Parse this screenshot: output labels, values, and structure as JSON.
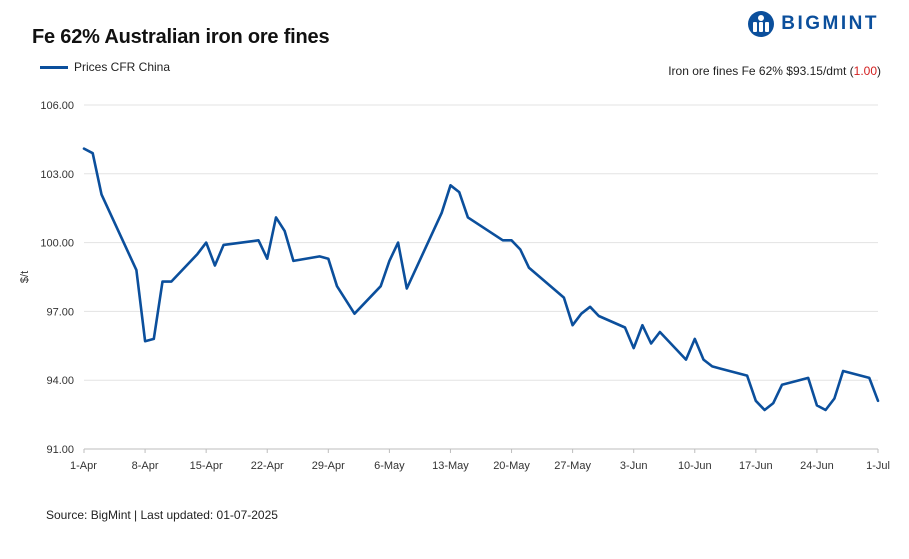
{
  "header": {
    "title": "Fe 62% Australian iron ore fines",
    "legend_label": "Prices CFR China",
    "ticker_main": "Iron ore fines Fe 62% $93.15/dmt (",
    "ticker_change": "1.00",
    "ticker_close": ")",
    "logo_text": "BIGMINT"
  },
  "footer": {
    "source": "Source: BigMint | Last updated: 01-07-2025"
  },
  "colors": {
    "series": "#0b4f9c",
    "negative": "#d32020",
    "grid": "#e3e3e3"
  },
  "chart_data": {
    "type": "line",
    "title": "Fe 62% Australian iron ore fines",
    "ylabel": "$/t",
    "xlabel": "",
    "ylim": [
      91,
      106
    ],
    "yticks": [
      "91.00",
      "94.00",
      "97.00",
      "100.00",
      "103.00",
      "106.00"
    ],
    "ytick_values": [
      91,
      94,
      97,
      100,
      103,
      106
    ],
    "xticks": [
      "1-Apr",
      "8-Apr",
      "15-Apr",
      "22-Apr",
      "29-Apr",
      "6-May",
      "13-May",
      "20-May",
      "27-May",
      "3-Jun",
      "10-Jun",
      "17-Jun",
      "24-Jun",
      "1-Jul"
    ],
    "xtick_days": [
      0,
      7,
      14,
      21,
      28,
      35,
      42,
      49,
      56,
      63,
      70,
      77,
      84,
      91
    ],
    "grid": "horizontal",
    "legend": "top-left",
    "series": [
      {
        "name": "Prices CFR China",
        "x": [
          "1-Apr",
          "2-Apr",
          "3-Apr",
          "7-Apr",
          "8-Apr",
          "9-Apr",
          "10-Apr",
          "11-Apr",
          "14-Apr",
          "15-Apr",
          "16-Apr",
          "17-Apr",
          "21-Apr",
          "22-Apr",
          "23-Apr",
          "24-Apr",
          "25-Apr",
          "28-Apr",
          "29-Apr",
          "30-Apr",
          "2-May",
          "5-May",
          "6-May",
          "7-May",
          "8-May",
          "12-May",
          "13-May",
          "14-May",
          "15-May",
          "19-May",
          "20-May",
          "21-May",
          "22-May",
          "26-May",
          "27-May",
          "28-May",
          "29-May",
          "30-May",
          "2-Jun",
          "3-Jun",
          "4-Jun",
          "5-Jun",
          "6-Jun",
          "9-Jun",
          "10-Jun",
          "11-Jun",
          "12-Jun",
          "13-Jun",
          "16-Jun",
          "17-Jun",
          "18-Jun",
          "19-Jun",
          "20-Jun",
          "23-Jun",
          "24-Jun",
          "25-Jun",
          "26-Jun",
          "27-Jun",
          "30-Jun",
          "1-Jul"
        ],
        "x_days": [
          0,
          1,
          2,
          6,
          7,
          8,
          9,
          10,
          13,
          14,
          15,
          16,
          20,
          21,
          22,
          23,
          24,
          27,
          28,
          29,
          31,
          34,
          35,
          36,
          37,
          41,
          42,
          43,
          44,
          48,
          49,
          50,
          51,
          55,
          56,
          57,
          58,
          59,
          62,
          63,
          64,
          65,
          66,
          69,
          70,
          71,
          72,
          73,
          76,
          77,
          78,
          79,
          80,
          83,
          84,
          85,
          86,
          87,
          90,
          91
        ],
        "values": [
          104.1,
          103.9,
          102.1,
          98.8,
          95.7,
          95.8,
          98.3,
          98.3,
          99.5,
          100.0,
          99.0,
          99.9,
          100.1,
          99.3,
          101.1,
          100.5,
          99.2,
          99.4,
          99.3,
          98.1,
          96.9,
          98.1,
          99.2,
          100.0,
          98.0,
          101.3,
          102.5,
          102.2,
          101.1,
          100.1,
          100.1,
          99.7,
          98.9,
          97.6,
          96.4,
          96.9,
          97.2,
          96.8,
          96.3,
          95.4,
          96.4,
          95.6,
          96.1,
          94.9,
          95.8,
          94.9,
          94.6,
          94.5,
          94.2,
          93.1,
          92.7,
          93.0,
          93.8,
          94.1,
          92.9,
          92.7,
          93.2,
          94.4,
          94.1,
          93.1
        ]
      }
    ]
  }
}
